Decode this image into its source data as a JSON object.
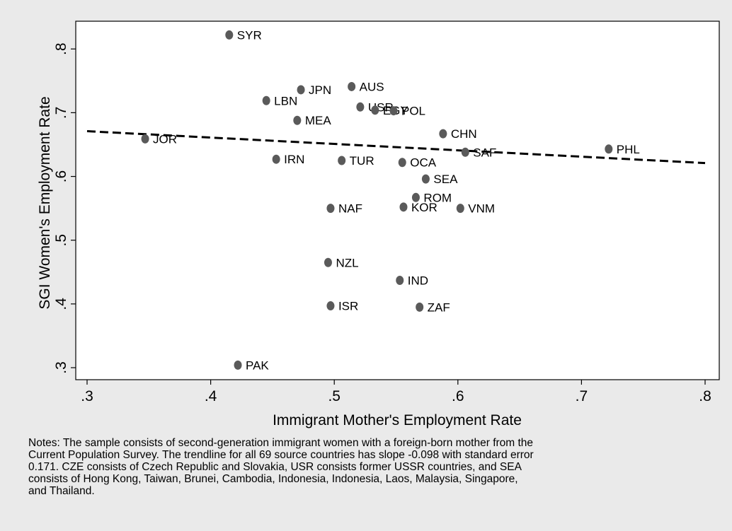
{
  "chart_data": {
    "type": "scatter",
    "xlabel": "Immigrant Mother's Employment Rate",
    "ylabel": "SGI Women's Employment Rate",
    "xlim": [
      0.3,
      0.8
    ],
    "ylim": [
      0.3,
      0.82
    ],
    "xticks": [
      {
        "value": 0.3,
        "label": ".3"
      },
      {
        "value": 0.4,
        "label": ".4"
      },
      {
        "value": 0.5,
        "label": ".5"
      },
      {
        "value": 0.6,
        "label": ".6"
      },
      {
        "value": 0.7,
        "label": ".7"
      },
      {
        "value": 0.8,
        "label": ".8"
      }
    ],
    "yticks": [
      {
        "value": 0.3,
        "label": ".3"
      },
      {
        "value": 0.4,
        "label": ".4"
      },
      {
        "value": 0.5,
        "label": ".5"
      },
      {
        "value": 0.6,
        "label": ".6"
      },
      {
        "value": 0.7,
        "label": ".7"
      },
      {
        "value": 0.8,
        "label": ".8"
      }
    ],
    "grid": false,
    "legend": "none",
    "marker_color": "#5a5a5a",
    "points": [
      {
        "label": "SYR",
        "x": 0.415,
        "y": 0.822
      },
      {
        "label": "AUS",
        "x": 0.514,
        "y": 0.741
      },
      {
        "label": "JPN",
        "x": 0.473,
        "y": 0.736
      },
      {
        "label": "LBN",
        "x": 0.445,
        "y": 0.719
      },
      {
        "label": "USR",
        "x": 0.521,
        "y": 0.709
      },
      {
        "label": "EGY",
        "x": 0.533,
        "y": 0.704
      },
      {
        "label": "POL",
        "x": 0.548,
        "y": 0.703
      },
      {
        "label": "MEA",
        "x": 0.47,
        "y": 0.688
      },
      {
        "label": "CHN",
        "x": 0.588,
        "y": 0.667
      },
      {
        "label": "JOR",
        "x": 0.347,
        "y": 0.659
      },
      {
        "label": "PHL",
        "x": 0.722,
        "y": 0.643
      },
      {
        "label": "SAF",
        "x": 0.606,
        "y": 0.638
      },
      {
        "label": "IRN",
        "x": 0.453,
        "y": 0.627
      },
      {
        "label": "TUR",
        "x": 0.506,
        "y": 0.625
      },
      {
        "label": "OCA",
        "x": 0.555,
        "y": 0.622
      },
      {
        "label": "SEA",
        "x": 0.574,
        "y": 0.596
      },
      {
        "label": "ROM",
        "x": 0.566,
        "y": 0.567
      },
      {
        "label": "KOR",
        "x": 0.556,
        "y": 0.552
      },
      {
        "label": "NAF",
        "x": 0.497,
        "y": 0.55
      },
      {
        "label": "VNM",
        "x": 0.602,
        "y": 0.55
      },
      {
        "label": "NZL",
        "x": 0.495,
        "y": 0.465
      },
      {
        "label": "IND",
        "x": 0.553,
        "y": 0.437
      },
      {
        "label": "ISR",
        "x": 0.497,
        "y": 0.397
      },
      {
        "label": "ZAF",
        "x": 0.569,
        "y": 0.395
      },
      {
        "label": "PAK",
        "x": 0.422,
        "y": 0.304
      }
    ],
    "trendline": {
      "x": [
        0.3,
        0.8
      ],
      "y": [
        0.671,
        0.621
      ],
      "style": "dashed",
      "color": "#000000"
    }
  },
  "notes": "Notes: The sample consists of second-generation immigrant women with a foreign-born mother from the\nCurrent Population Survey.  The trendline for all 69 source countries has slope -0.098 with standard error\n0.171.  CZE consists of Czech Republic and Slovakia, USR consists former USSR countries, and SEA\nconsists of Hong Kong, Taiwan, Brunei, Cambodia, Indonesia, Indonesia, Laos, Malaysia, Singapore,\nand Thailand."
}
